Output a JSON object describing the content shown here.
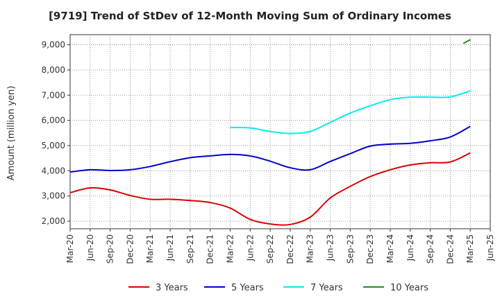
{
  "chart_data": {
    "type": "line",
    "title": "[9719]  Trend of StDev of 12-Month Moving Sum of Ordinary Incomes",
    "ylabel": "Amount (million yen)",
    "xlabel": "",
    "x": [
      "Mar-20",
      "Jun-20",
      "Sep-20",
      "Dec-20",
      "Mar-21",
      "Jun-21",
      "Sep-21",
      "Dec-21",
      "Mar-22",
      "Jun-22",
      "Sep-22",
      "Dec-22",
      "Mar-23",
      "Jun-23",
      "Sep-23",
      "Dec-23",
      "Mar-24",
      "Jun-24",
      "Sep-24",
      "Dec-24",
      "Mar-25",
      "Jun-25"
    ],
    "ylim": [
      1700,
      9400
    ],
    "yticks": [
      2000,
      3000,
      4000,
      5000,
      6000,
      7000,
      8000,
      9000
    ],
    "ytick_labels": [
      "2,000",
      "3,000",
      "4,000",
      "5,000",
      "6,000",
      "7,000",
      "8,000",
      "9,000"
    ],
    "grid": true,
    "legend_position": "bottom",
    "series": [
      {
        "name": "3 Years",
        "color": "#dd0000",
        "values": [
          3130,
          3320,
          3240,
          3020,
          2870,
          2870,
          2820,
          2740,
          2520,
          2070,
          1890,
          1870,
          2160,
          2920,
          3380,
          3770,
          4040,
          4230,
          4320,
          4350,
          4710,
          null
        ]
      },
      {
        "name": "5 Years",
        "color": "#0000cc",
        "values": [
          3950,
          4040,
          4010,
          4040,
          4170,
          4360,
          4520,
          4590,
          4650,
          4590,
          4380,
          4120,
          4040,
          4370,
          4680,
          4980,
          5060,
          5090,
          5190,
          5340,
          5760,
          null
        ]
      },
      {
        "name": "7 Years",
        "color": "#00eeee",
        "values": [
          null,
          null,
          null,
          null,
          null,
          null,
          null,
          null,
          5720,
          5700,
          5560,
          5480,
          5560,
          5920,
          6290,
          6580,
          6820,
          6920,
          6920,
          6930,
          7170,
          null
        ]
      },
      {
        "name": "10 Years",
        "color": "#228b22",
        "values": [
          null,
          null,
          null,
          null,
          null,
          null,
          null,
          null,
          null,
          null,
          null,
          null,
          null,
          null,
          null,
          null,
          null,
          null,
          null,
          null,
          9200,
          null
        ]
      }
    ],
    "ten_year_start": 9050
  }
}
